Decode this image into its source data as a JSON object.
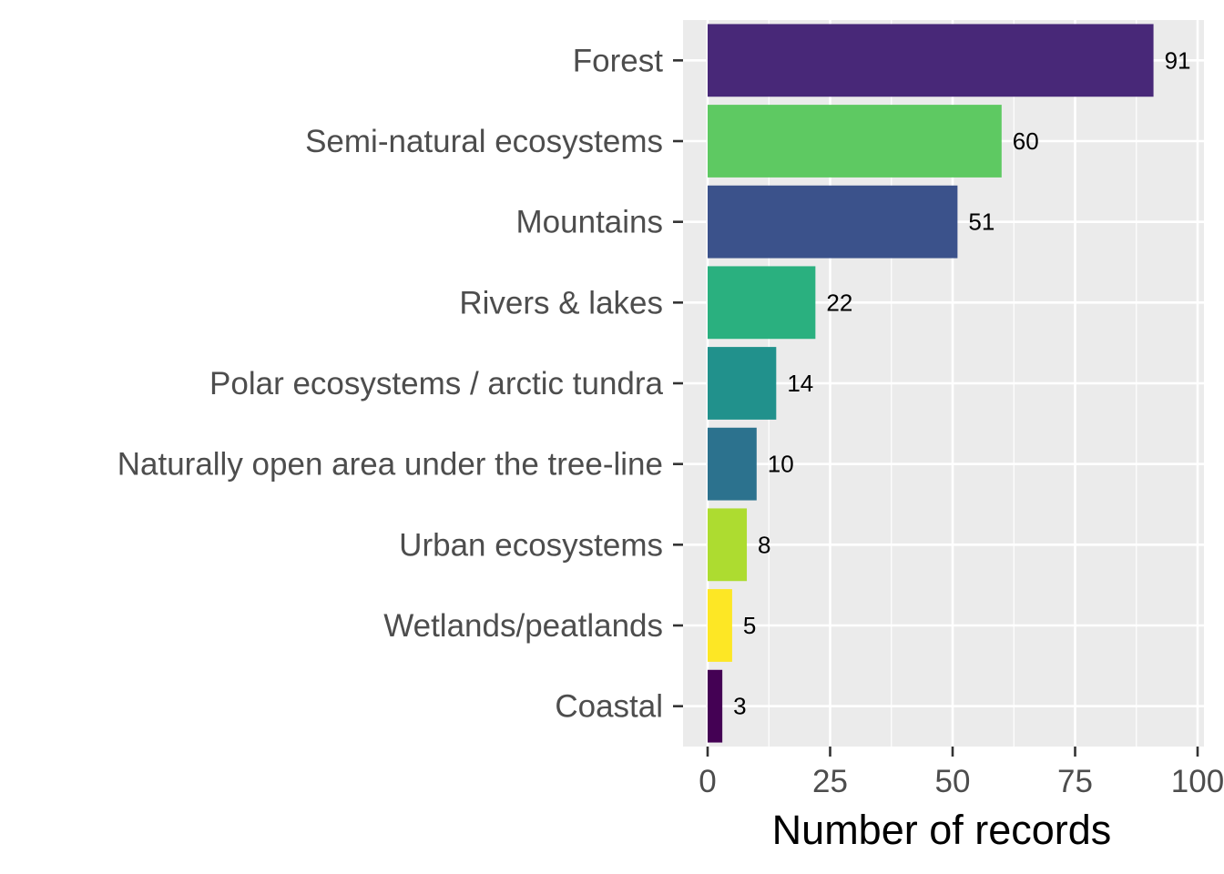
{
  "chart_data": {
    "type": "bar",
    "orientation": "horizontal",
    "categories": [
      "Forest",
      "Semi-natural ecosystems",
      "Mountains",
      "Rivers & lakes",
      "Polar ecosystems / arctic tundra",
      "Naturally open area under the tree-line",
      "Urban ecosystems",
      "Wetlands/peatlands",
      "Coastal"
    ],
    "values": [
      91,
      60,
      51,
      22,
      14,
      10,
      8,
      5,
      3
    ],
    "data_labels": [
      "91",
      "60",
      "51",
      "22",
      "14",
      "10",
      "8",
      "5",
      "3"
    ],
    "colors": [
      "#482878",
      "#5ec962",
      "#3b528b",
      "#2ab07f",
      "#21918c",
      "#2c728e",
      "#addc30",
      "#fde725",
      "#440154"
    ],
    "xlabel": "Number of records",
    "ylabel": "",
    "xlim": [
      0,
      100
    ],
    "x_ticks": [
      0,
      25,
      50,
      75,
      100
    ],
    "x_tick_labels": [
      "0",
      "25",
      "50",
      "75",
      "100"
    ],
    "grid": true,
    "panel_background": "#ebebeb",
    "legend": "none"
  }
}
